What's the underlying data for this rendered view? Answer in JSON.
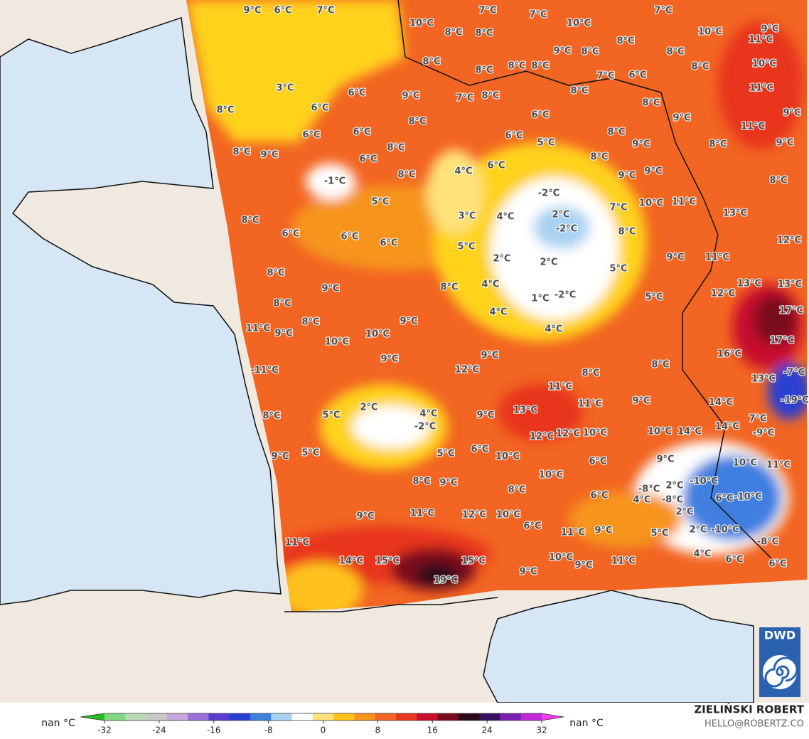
{
  "labels": [
    "9°C",
    "6°C",
    "7°C",
    "7°C",
    "7°C",
    "7°C",
    "10°C",
    "8°C",
    "8°C",
    "10°C",
    "10°C",
    "9°C",
    "11°C",
    "8°C",
    "9°C",
    "8°C",
    "8°C",
    "8°C",
    "10°C",
    "8°C",
    "8°C",
    "8°C",
    "7°C",
    "6°C",
    "8°C",
    "11°C",
    "3°C",
    "6°C",
    "9°C",
    "7°C",
    "8°C",
    "8°C",
    "8°C",
    "9°C",
    "9°C",
    "8°C",
    "6°C",
    "6°C",
    "6°C",
    "6°C",
    "8°C",
    "6°C",
    "8°C",
    "11°C",
    "9°C",
    "8°C",
    "9°C",
    "8°C",
    "5°C",
    "9°C",
    "8°C",
    "6°C",
    "6°C",
    "8°C",
    "4°C",
    "8°C",
    "-1°C",
    "9°C",
    "9°C",
    "8°C",
    "-2°C",
    "5°C",
    "7°C",
    "10°C",
    "11°C",
    "13°C",
    "2°C",
    "3°C",
    "4°C",
    "-2°C",
    "8°C",
    "6°C",
    "6°C",
    "6°C",
    "5°C",
    "8°C",
    "12°C",
    "2°C",
    "2°C",
    "9°C",
    "11°C",
    "5°C",
    "8°C",
    "9°C",
    "8°C",
    "4°C",
    "12°C",
    "13°C",
    "13°C",
    "1°C",
    "-2°C",
    "5°C",
    "8°C",
    "4°C",
    "8°C",
    "9°C",
    "17°C",
    "11°C",
    "9°C",
    "10°C",
    "4°C",
    "10°C",
    "17°C",
    "9°C",
    "16°C",
    "9°C",
    "8°C",
    "-11°C",
    "12°C",
    "8°C",
    "13°C",
    "-7°C",
    "11°C",
    "2°C",
    "5°C",
    "13°C",
    "11°C",
    "9°C",
    "14°C",
    "-19°C",
    "8°C",
    "4°C",
    "9°C",
    "7°C",
    "-2°C",
    "-9°C",
    "14°C",
    "12°C",
    "12°C",
    "10°C",
    "10°C",
    "14°C",
    "9°C",
    "5°C",
    "5°C",
    "6°C",
    "10°C",
    "6°C",
    "9°C",
    "10°C",
    "11°C",
    "10°C",
    "-10°C",
    "8°C",
    "9°C",
    "8°C",
    "2°C",
    "-8°C",
    "6°C",
    "-8°C",
    "4°C",
    "-10°C",
    "6°C",
    "9°C",
    "11°C",
    "12°C",
    "10°C",
    "2°C",
    "6°C",
    "11°C",
    "9°C",
    "5°C",
    "2°C",
    "-10°C",
    "-8°C",
    "11°C",
    "4°C",
    "6°C",
    "14°C",
    "15°C",
    "15°C",
    "10°C",
    "11°C",
    "6°C",
    "9°C",
    "9°C",
    "19°C"
  ],
  "colorbar": {
    "lim": [
      -32,
      32
    ],
    "ticks": [
      -32,
      -24,
      -16,
      -8,
      0,
      8,
      16,
      24,
      32
    ],
    "min_label": "nan °C",
    "max_label": "nan °C",
    "colors": [
      "#22c022",
      "#7fd77f",
      "#b9d9b9",
      "#c9c9c9",
      "#c7a9e0",
      "#9b6fd8",
      "#5a3ccf",
      "#2a3fd0",
      "#3f7fe0",
      "#a9d2f2",
      "#ffffff",
      "#ffe27a",
      "#ffc21a",
      "#f7941d",
      "#f26522",
      "#e8351f",
      "#c8102e",
      "#7a0a1e",
      "#2b0a1a",
      "#3a1060",
      "#7a1fb0",
      "#c02ad8",
      "#f03cf0"
    ]
  },
  "credit": {
    "name": "ZIELIŃSKI ROBERT",
    "email": "HELLO@ROBERTZ.CO",
    "logo": "DWD"
  }
}
